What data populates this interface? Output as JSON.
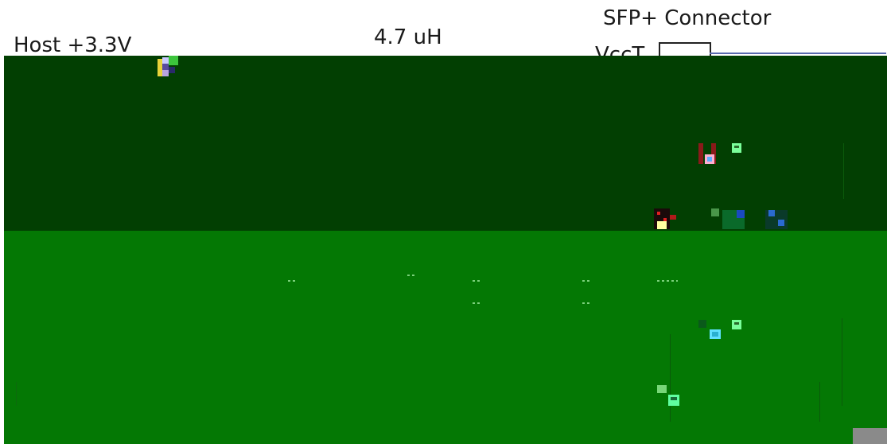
{
  "labels": {
    "host_supply": "Host +3.3V",
    "inductor_value": "4.7 uH",
    "connector_title": "SFP+ Connector",
    "connector_pin": "VccT"
  },
  "colors": {
    "upper_panel": "#023f02",
    "lower_panel": "#047804",
    "wire": "#111111",
    "connector_wire": "#5a6ab0",
    "corner_tab": "#8a8a8a"
  },
  "icons": [
    "inductor-icon",
    "capacitor-icon",
    "resistor-icon",
    "ferrite-bead-icon"
  ]
}
